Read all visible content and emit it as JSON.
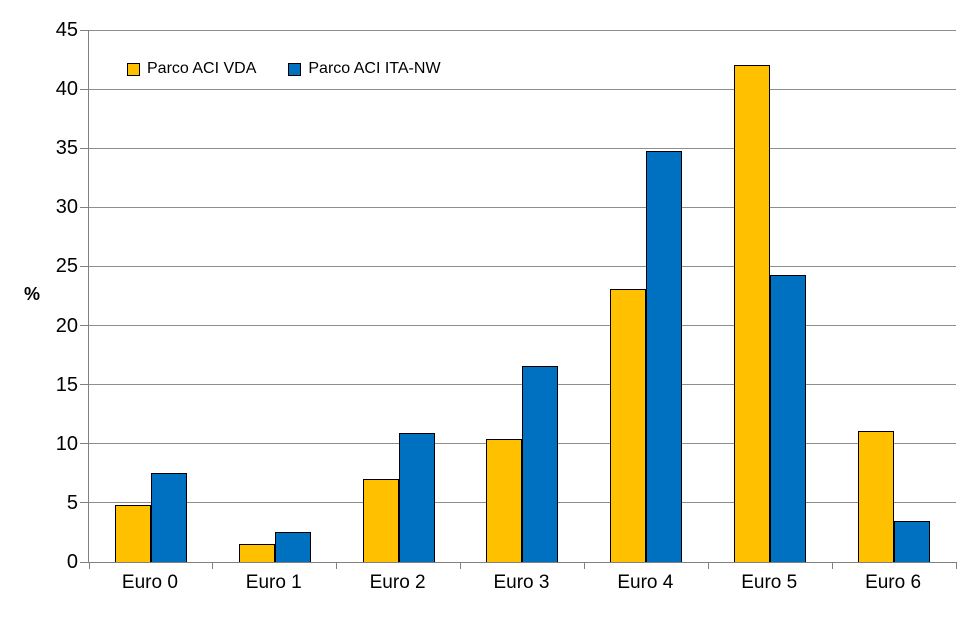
{
  "chart_data": {
    "type": "bar",
    "title": "",
    "categories": [
      "Euro 0",
      "Euro 1",
      "Euro 2",
      "Euro 3",
      "Euro 4",
      "Euro 5",
      "Euro 6"
    ],
    "series": [
      {
        "name": "Parco ACI VDA",
        "color": "#FFC000",
        "values": [
          4.8,
          1.5,
          7.0,
          10.4,
          23.1,
          42.0,
          11.1
        ]
      },
      {
        "name": "Parco ACI ITA-NW",
        "color": "#0070C0",
        "values": [
          7.5,
          2.5,
          10.9,
          16.6,
          34.8,
          24.3,
          3.5
        ]
      }
    ],
    "xlabel": "",
    "ylabel": "%",
    "ylim": [
      0,
      45
    ],
    "yticks": [
      0,
      5,
      10,
      15,
      20,
      25,
      30,
      35,
      40,
      45
    ],
    "grid": true,
    "legend_position": "top-left-inside"
  },
  "colors": {
    "background": "#ffffff",
    "grid": "#8e8e8e",
    "axis": "#808080",
    "bar_border": "#000000",
    "text": "#000000"
  }
}
